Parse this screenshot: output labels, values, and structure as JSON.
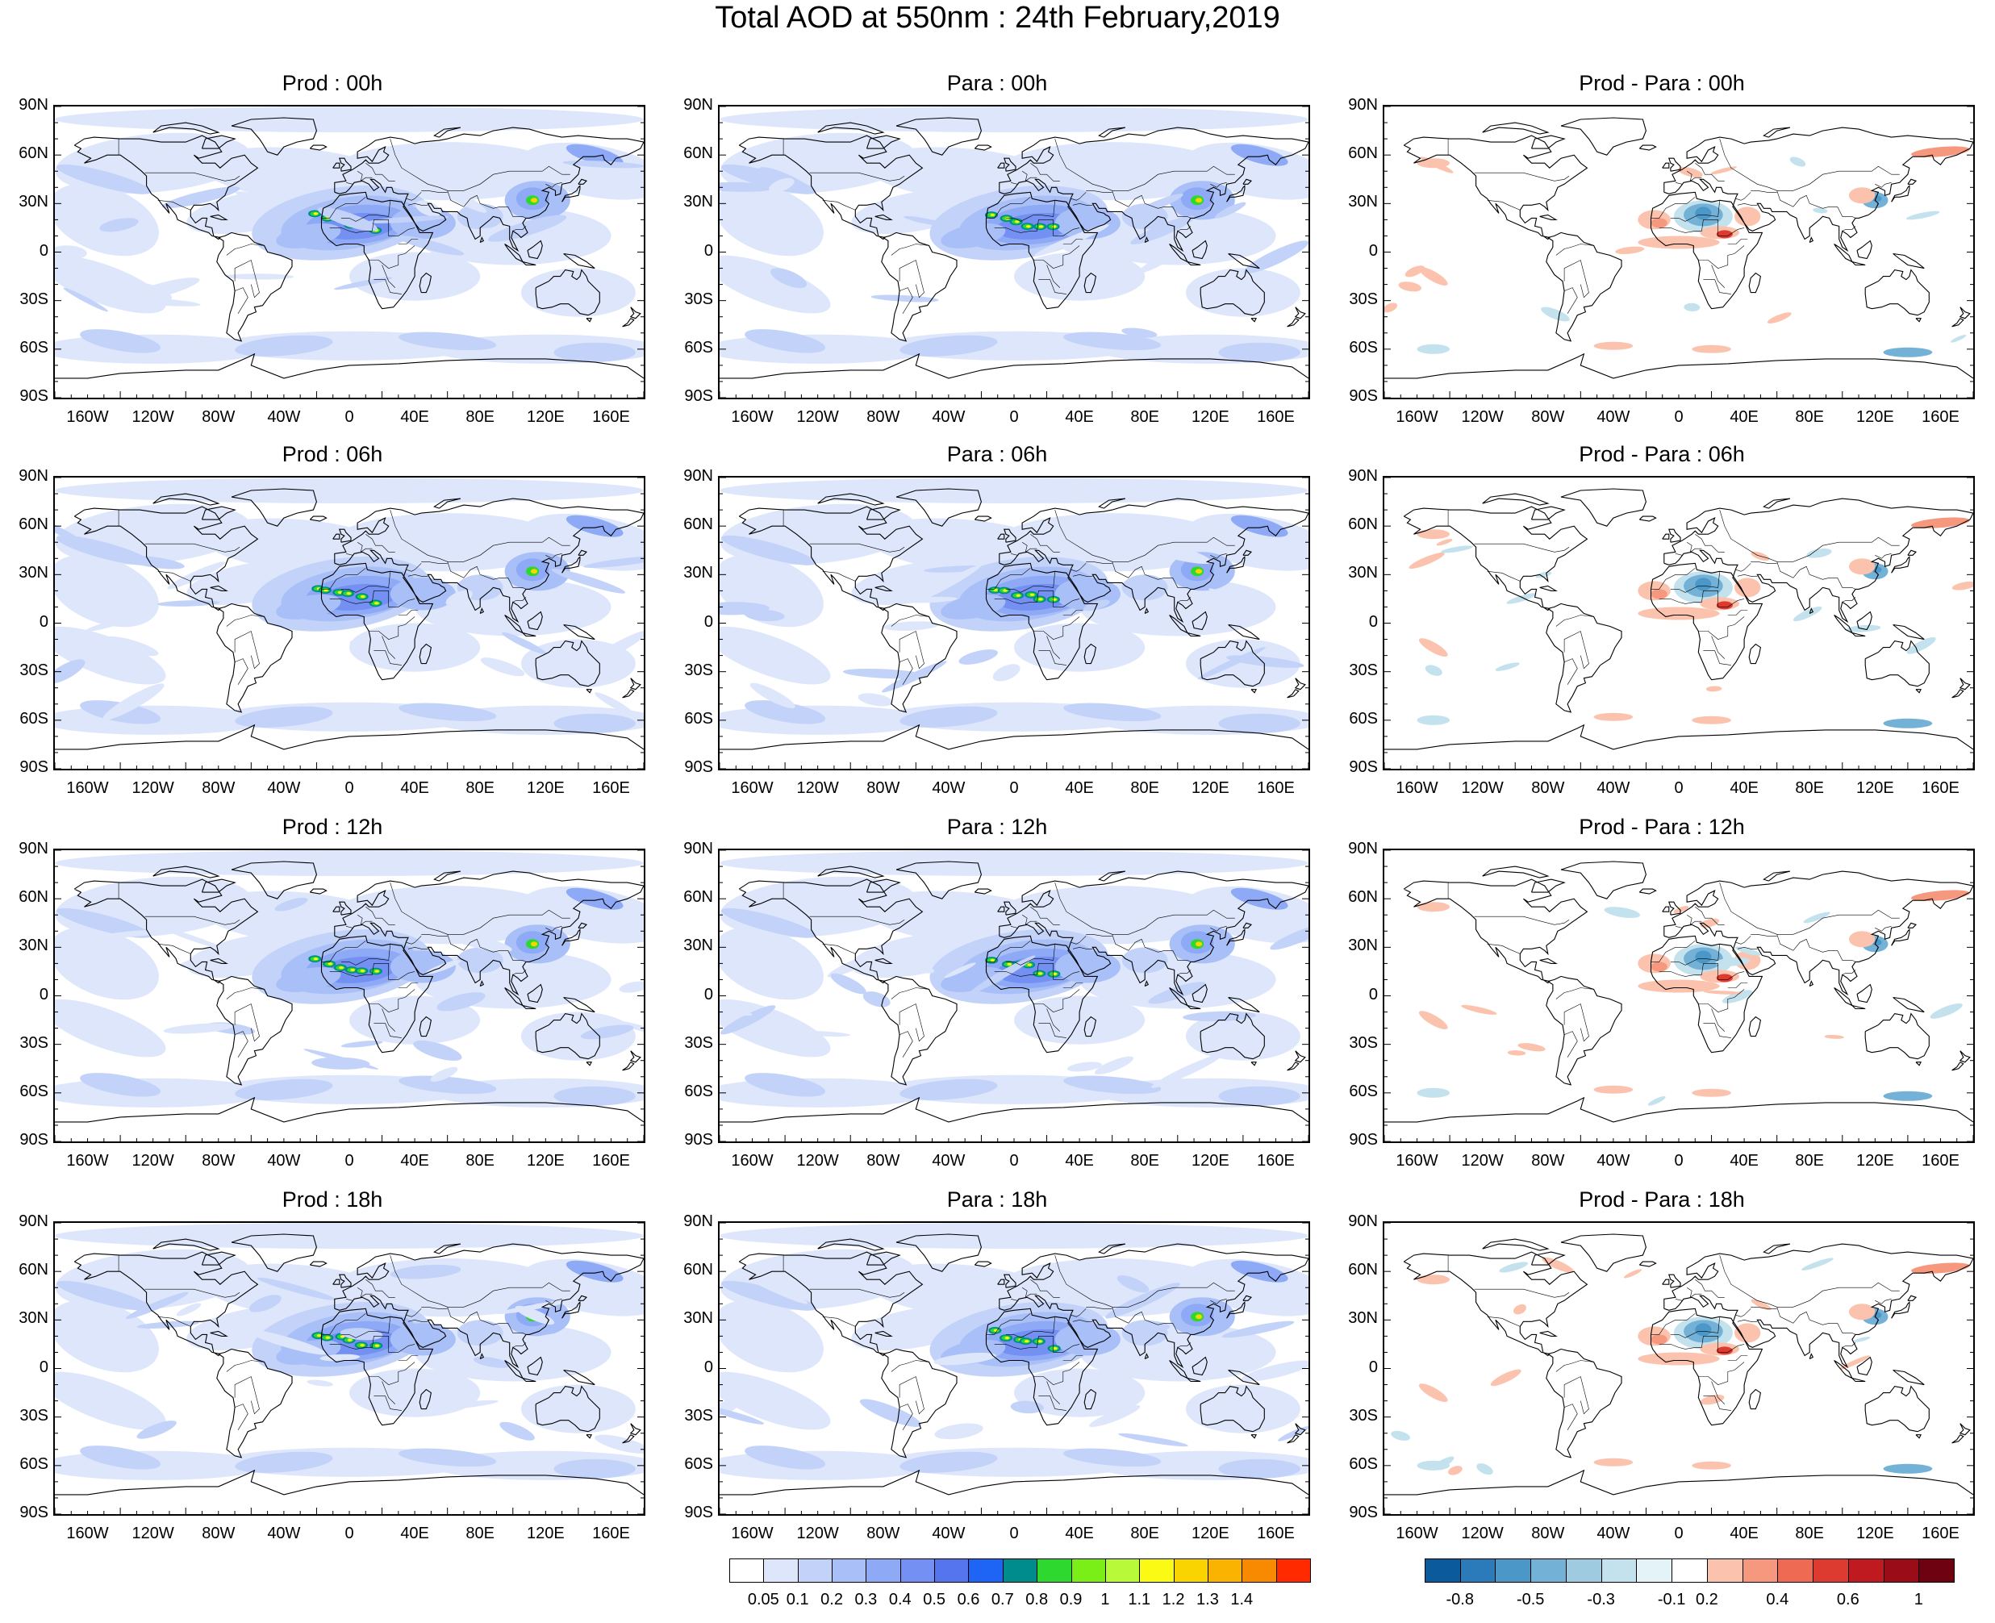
{
  "title": "Total AOD at 550nm : 24th February,2019",
  "lat_labels": [
    "90N",
    "60N",
    "30N",
    "0",
    "30S",
    "60S",
    "90S"
  ],
  "lon_labels": [
    "160W",
    "120W",
    "80W",
    "40W",
    "0",
    "40E",
    "80E",
    "120E",
    "160E"
  ],
  "panels": [
    {
      "title": "Prod : 00h",
      "type": "aod",
      "variant": 0
    },
    {
      "title": "Para : 00h",
      "type": "aod",
      "variant": 1
    },
    {
      "title": "Prod - Para : 00h",
      "type": "diff",
      "variant": 2
    },
    {
      "title": "Prod : 06h",
      "type": "aod",
      "variant": 3
    },
    {
      "title": "Para : 06h",
      "type": "aod",
      "variant": 4
    },
    {
      "title": "Prod - Para : 06h",
      "type": "diff",
      "variant": 5
    },
    {
      "title": "Prod : 12h",
      "type": "aod",
      "variant": 6
    },
    {
      "title": "Para : 12h",
      "type": "aod",
      "variant": 7
    },
    {
      "title": "Prod - Para : 12h",
      "type": "diff",
      "variant": 8
    },
    {
      "title": "Prod : 18h",
      "type": "aod",
      "variant": 9
    },
    {
      "title": "Para : 18h",
      "type": "aod",
      "variant": 10
    },
    {
      "title": "Prod - Para : 18h",
      "type": "diff",
      "variant": 11
    }
  ],
  "colorbar_aod": {
    "labels": [
      "0.05",
      "0.1",
      "0.2",
      "0.3",
      "0.4",
      "0.5",
      "0.6",
      "0.7",
      "0.8",
      "0.9",
      "1",
      "1.1",
      "1.2",
      "1.3",
      "1.4"
    ],
    "colors": [
      "#ffffff",
      "#dde6fb",
      "#c2d2f9",
      "#a9bff7",
      "#8ea9f5",
      "#7390f2",
      "#5575ee",
      "#1e64f5",
      "#008c8c",
      "#2ed82e",
      "#7aef17",
      "#b8fa3a",
      "#fafa14",
      "#fad400",
      "#fab300",
      "#f78a00",
      "#ff2a00"
    ]
  },
  "colorbar_diff": {
    "labels": [
      "-0.8",
      "-0.5",
      "-0.3",
      "-0.1",
      "0.2",
      "0.4",
      "0.6",
      "1"
    ],
    "colors": [
      "#0a5a9c",
      "#2b7bba",
      "#4b97c8",
      "#73b2d6",
      "#9fcbe1",
      "#c3e2ee",
      "#e3f3f8",
      "#ffffff",
      "#fbc3ae",
      "#f6987e",
      "#ee6a52",
      "#de3b30",
      "#bf1a1f",
      "#9a0c18",
      "#6e0210"
    ]
  },
  "map_colors": {
    "land_line": "#000000"
  }
}
